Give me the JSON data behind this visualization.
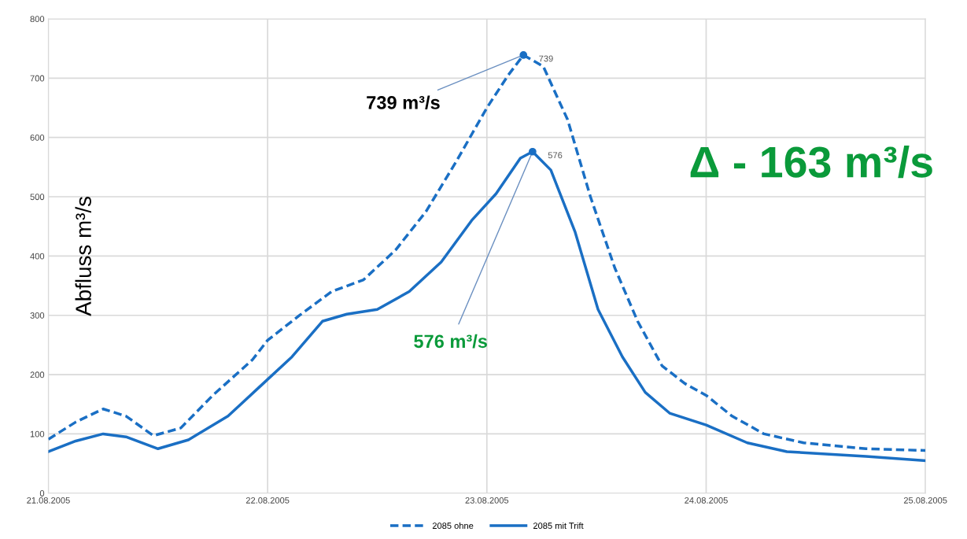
{
  "chart_data": {
    "type": "line",
    "ylabel": "Abfluss m³/s",
    "series": [
      {
        "name": "2085 ohne",
        "color": "#1a6fc4",
        "line_style": "dashed",
        "x": [
          "2005-08-21T00:00",
          "2005-08-21T03:00",
          "2005-08-21T06:00",
          "2005-08-21T08:30",
          "2005-08-21T11:30",
          "2005-08-21T14:30",
          "2005-08-21T18:00",
          "2005-08-21T22:20",
          "2005-08-22T00:00",
          "2005-08-22T03:30",
          "2005-08-22T07:00",
          "2005-08-22T10:30",
          "2005-08-22T14:00",
          "2005-08-22T17:20",
          "2005-08-22T20:40",
          "2005-08-23T00:00",
          "2005-08-23T02:20",
          "2005-08-23T04:00",
          "2005-08-23T06:10",
          "2005-08-23T08:50",
          "2005-08-23T11:20",
          "2005-08-23T14:00",
          "2005-08-23T16:30",
          "2005-08-23T19:10",
          "2005-08-23T21:40",
          "2005-08-24T00:00",
          "2005-08-24T02:50",
          "2005-08-24T06:20",
          "2005-08-24T10:40",
          "2005-08-24T17:30",
          "2005-08-25T00:00"
        ],
        "values": [
          91,
          120,
          142,
          130,
          97,
          110,
          165,
          225,
          258,
          300,
          340,
          360,
          410,
          475,
          560,
          650,
          705,
          739,
          720,
          630,
          500,
          380,
          290,
          215,
          185,
          165,
          130,
          100,
          85,
          75,
          72
        ],
        "value_labels": [
          null,
          null,
          null,
          null,
          null,
          null,
          null,
          null,
          null,
          null,
          null,
          null,
          null,
          null,
          null,
          null,
          null,
          "739",
          null,
          null,
          null,
          null,
          null,
          null,
          null,
          null,
          null,
          null,
          null,
          null,
          null
        ]
      },
      {
        "name": "2085 mit Trift",
        "color": "#1a6fc4",
        "line_style": "solid",
        "x": [
          "2005-08-21T00:00",
          "2005-08-21T03:00",
          "2005-08-21T06:00",
          "2005-08-21T08:30",
          "2005-08-21T12:00",
          "2005-08-21T15:20",
          "2005-08-21T19:40",
          "2005-08-21T23:10",
          "2005-08-22T02:40",
          "2005-08-22T06:00",
          "2005-08-22T08:40",
          "2005-08-22T12:00",
          "2005-08-22T15:30",
          "2005-08-22T19:00",
          "2005-08-22T22:20",
          "2005-08-23T01:00",
          "2005-08-23T03:40",
          "2005-08-23T05:00",
          "2005-08-23T07:00",
          "2005-08-23T09:40",
          "2005-08-23T12:10",
          "2005-08-23T14:50",
          "2005-08-23T17:20",
          "2005-08-23T20:00",
          "2005-08-24T00:00",
          "2005-08-24T04:30",
          "2005-08-24T08:50",
          "2005-08-24T17:30",
          "2005-08-25T00:00"
        ],
        "values": [
          70,
          88,
          100,
          95,
          75,
          90,
          130,
          180,
          230,
          290,
          302,
          310,
          340,
          390,
          460,
          505,
          565,
          576,
          545,
          440,
          310,
          230,
          170,
          135,
          115,
          85,
          70,
          62,
          55
        ],
        "value_labels": [
          null,
          null,
          null,
          null,
          null,
          null,
          null,
          null,
          null,
          null,
          null,
          null,
          null,
          null,
          null,
          null,
          null,
          "576",
          null,
          null,
          null,
          null,
          null,
          null,
          null,
          null,
          null,
          null,
          null
        ]
      }
    ],
    "xlim": [
      "2005-08-21",
      "2005-08-25"
    ],
    "xticks": [
      {
        "value": "2005-08-21",
        "label": "21.08.2005"
      },
      {
        "value": "2005-08-22",
        "label": "22.08.2005"
      },
      {
        "value": "2005-08-23",
        "label": "23.08.2005"
      },
      {
        "value": "2005-08-24",
        "label": "24.08.2005"
      },
      {
        "value": "2005-08-25",
        "label": "25.08.2005"
      }
    ],
    "ylim": [
      0,
      800
    ],
    "yticks": [
      0,
      100,
      200,
      300,
      400,
      500,
      600,
      700,
      800
    ],
    "annotations": [
      {
        "text": "739 m³/s",
        "x": "2005-08-23T04:00",
        "y": 739
      },
      {
        "text": "576 m³/s",
        "x": "2005-08-23T05:00",
        "y": 576
      },
      "Δ - 163 m³/s"
    ],
    "grid": true,
    "legend": "bottom",
    "marker": "none"
  }
}
